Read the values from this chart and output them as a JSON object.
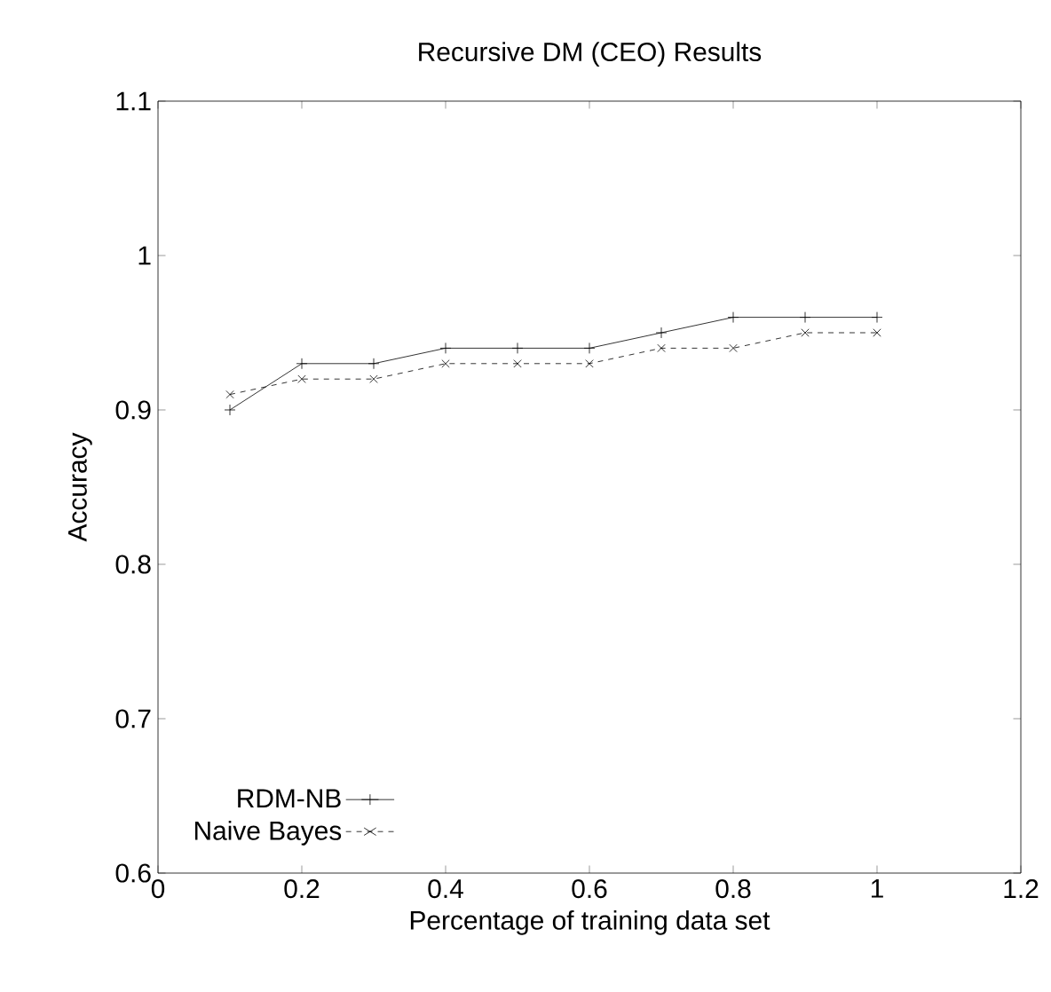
{
  "chart_data": {
    "type": "line",
    "title": "Recursive DM (CEO) Results",
    "xlabel": "Percentage of training data set",
    "ylabel": "Accuracy",
    "x": [
      0.1,
      0.2,
      0.3,
      0.4,
      0.5,
      0.6,
      0.7,
      0.8,
      0.9,
      1.0
    ],
    "series": [
      {
        "name": "RDM-NB",
        "color": "#000000",
        "marker": "cross",
        "line_style": "solid",
        "values": [
          0.9,
          0.93,
          0.93,
          0.94,
          0.94,
          0.94,
          0.95,
          0.96,
          0.96,
          0.96
        ]
      },
      {
        "name": "Naive Bayes",
        "color": "#000000",
        "marker": "x",
        "line_style": "dashed",
        "values": [
          0.91,
          0.92,
          0.92,
          0.93,
          0.93,
          0.93,
          0.94,
          0.94,
          0.95,
          0.95
        ]
      }
    ],
    "xlim": [
      0,
      1.2
    ],
    "ylim": [
      0.6,
      1.1
    ],
    "xticks": [
      0,
      {
        "value": 0.2,
        "label": "0.2"
      },
      {
        "value": 0.4,
        "label": "0.4"
      },
      {
        "value": 0.6,
        "label": "0.6"
      },
      {
        "value": 0.8,
        "label": "0.8"
      },
      1,
      {
        "value": 1.2,
        "label": "1.2"
      }
    ],
    "yticks": [
      {
        "value": 0.6,
        "label": "0.6"
      },
      {
        "value": 0.7,
        "label": "0.7"
      },
      {
        "value": 0.8,
        "label": "0.8"
      },
      {
        "value": 0.9,
        "label": "0.9"
      },
      1,
      {
        "value": 1.1,
        "label": "1.1"
      }
    ],
    "grid": false,
    "legend": "bottom left"
  }
}
